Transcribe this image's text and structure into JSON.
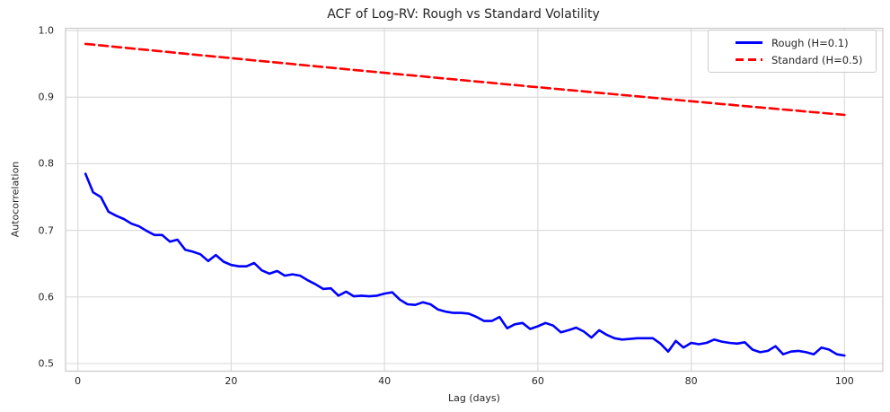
{
  "chart_data": {
    "type": "line",
    "title": "ACF of Log-RV: Rough vs Standard Volatility",
    "xlabel": "Lag (days)",
    "ylabel": "Autocorrelation",
    "grid": true,
    "legend_position": "upper right",
    "xlim": [
      -1.6,
      105.0
    ],
    "ylim": [
      0.4886,
      1.0034
    ],
    "xticks": [
      0,
      20,
      40,
      60,
      80,
      100
    ],
    "yticks": [
      0.5,
      0.6,
      0.7,
      0.8,
      0.9,
      1.0
    ],
    "colors": {
      "rough_line": "#0000ff",
      "standard_line": "#ff0000",
      "grid": "#dcdcdc",
      "spine": "#cccccc",
      "text": "#262626",
      "background": "#ffffff"
    },
    "x": [
      1,
      2,
      3,
      4,
      5,
      6,
      7,
      8,
      9,
      10,
      11,
      12,
      13,
      14,
      15,
      16,
      17,
      18,
      19,
      20,
      21,
      22,
      23,
      24,
      25,
      26,
      27,
      28,
      29,
      30,
      31,
      32,
      33,
      34,
      35,
      36,
      37,
      38,
      39,
      40,
      41,
      42,
      43,
      44,
      45,
      46,
      47,
      48,
      49,
      50,
      51,
      52,
      53,
      54,
      55,
      56,
      57,
      58,
      59,
      60,
      61,
      62,
      63,
      64,
      65,
      66,
      67,
      68,
      69,
      70,
      71,
      72,
      73,
      74,
      75,
      76,
      77,
      78,
      79,
      80,
      81,
      82,
      83,
      84,
      85,
      86,
      87,
      88,
      89,
      90,
      91,
      92,
      93,
      94,
      95,
      96,
      97,
      98,
      99,
      100
    ],
    "series": [
      {
        "name": "Rough (H=0.1)",
        "color": "#0000ff",
        "line_style": "solid",
        "values": [
          0.785,
          0.757,
          0.75,
          0.728,
          0.722,
          0.717,
          0.71,
          0.706,
          0.699,
          0.693,
          0.693,
          0.683,
          0.686,
          0.671,
          0.668,
          0.664,
          0.654,
          0.663,
          0.653,
          0.648,
          0.646,
          0.646,
          0.651,
          0.64,
          0.635,
          0.639,
          0.632,
          0.634,
          0.632,
          0.625,
          0.619,
          0.612,
          0.613,
          0.602,
          0.608,
          0.601,
          0.602,
          0.601,
          0.602,
          0.605,
          0.607,
          0.596,
          0.589,
          0.588,
          0.592,
          0.589,
          0.581,
          0.578,
          0.576,
          0.576,
          0.575,
          0.57,
          0.564,
          0.564,
          0.57,
          0.553,
          0.559,
          0.561,
          0.552,
          0.556,
          0.561,
          0.557,
          0.547,
          0.55,
          0.554,
          0.548,
          0.539,
          0.55,
          0.543,
          0.538,
          0.536,
          0.537,
          0.538,
          0.538,
          0.538,
          0.53,
          0.518,
          0.534,
          0.524,
          0.531,
          0.529,
          0.531,
          0.536,
          0.533,
          0.531,
          0.53,
          0.532,
          0.521,
          0.517,
          0.519,
          0.526,
          0.514,
          0.518,
          0.519,
          0.517,
          0.514,
          0.524,
          0.521,
          0.514,
          0.512
        ]
      },
      {
        "name": "Standard (H=0.5)",
        "color": "#ff0000",
        "line_style": "dashed",
        "values": [
          0.98,
          0.9789,
          0.9777,
          0.9766,
          0.9754,
          0.9743,
          0.9732,
          0.972,
          0.9709,
          0.9698,
          0.9686,
          0.9675,
          0.9664,
          0.9653,
          0.9641,
          0.963,
          0.9619,
          0.9608,
          0.9597,
          0.9586,
          0.9575,
          0.9563,
          0.9552,
          0.9541,
          0.953,
          0.9519,
          0.9508,
          0.9497,
          0.9486,
          0.9475,
          0.9464,
          0.9453,
          0.9442,
          0.9431,
          0.942,
          0.9409,
          0.9398,
          0.9387,
          0.9376,
          0.9365,
          0.9354,
          0.9343,
          0.9332,
          0.9322,
          0.9311,
          0.93,
          0.9289,
          0.9278,
          0.9268,
          0.9257,
          0.9246,
          0.9235,
          0.9225,
          0.9214,
          0.9203,
          0.9192,
          0.9182,
          0.9171,
          0.916,
          0.915,
          0.9139,
          0.9128,
          0.9118,
          0.9107,
          0.9097,
          0.9086,
          0.9075,
          0.9065,
          0.9054,
          0.9044,
          0.9033,
          0.9023,
          0.9012,
          0.9002,
          0.8991,
          0.8981,
          0.897,
          0.896,
          0.8949,
          0.8939,
          0.8929,
          0.8918,
          0.8908,
          0.8897,
          0.8887,
          0.8877,
          0.8866,
          0.8856,
          0.8846,
          0.8836,
          0.8825,
          0.8815,
          0.8805,
          0.8795,
          0.8784,
          0.8774,
          0.8764,
          0.8754,
          0.8744,
          0.8733
        ]
      }
    ]
  }
}
